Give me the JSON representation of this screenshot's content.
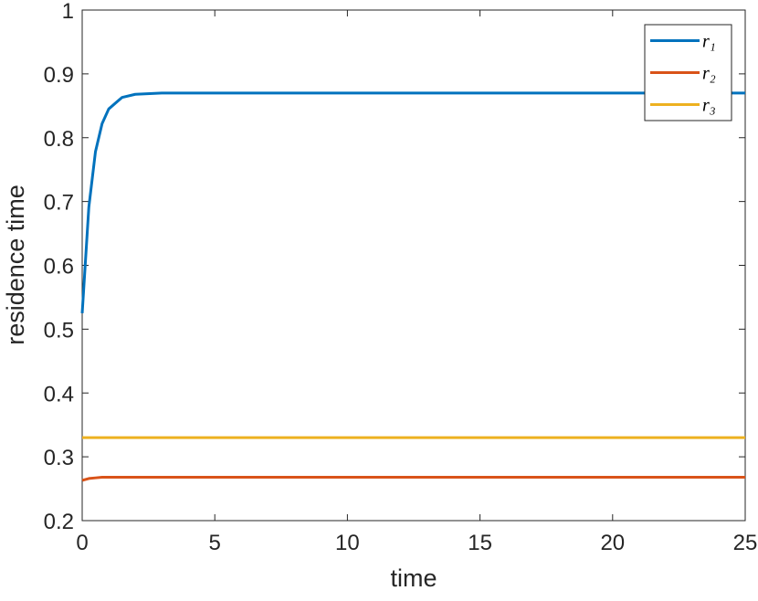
{
  "chart_data": {
    "type": "line",
    "xlabel": "time",
    "ylabel": "residence time",
    "x": [
      0,
      0.25,
      0.5,
      0.75,
      1,
      1.5,
      2,
      3,
      5,
      10,
      15,
      20,
      25
    ],
    "series": [
      {
        "name": "r₁",
        "color": "#0072bd",
        "values": [
          0.525,
          0.691,
          0.778,
          0.822,
          0.845,
          0.863,
          0.868,
          0.87,
          0.87,
          0.87,
          0.87,
          0.87,
          0.87
        ]
      },
      {
        "name": "r₂",
        "color": "#d95319",
        "values": [
          0.263,
          0.266,
          0.267,
          0.268,
          0.268,
          0.268,
          0.268,
          0.268,
          0.268,
          0.268,
          0.268,
          0.268,
          0.268
        ]
      },
      {
        "name": "r₃",
        "color": "#edb120",
        "values": [
          0.33,
          0.33,
          0.33,
          0.33,
          0.33,
          0.33,
          0.33,
          0.33,
          0.33,
          0.33,
          0.33,
          0.33,
          0.33
        ]
      }
    ],
    "xlim": [
      0,
      25
    ],
    "xticks": [
      0,
      5,
      10,
      15,
      20,
      25
    ],
    "ylim": [
      0.2,
      1
    ],
    "yticks": [
      0.2,
      0.3,
      0.4,
      0.5,
      0.6,
      0.7,
      0.8,
      0.9,
      1
    ],
    "legend": "northeast"
  }
}
